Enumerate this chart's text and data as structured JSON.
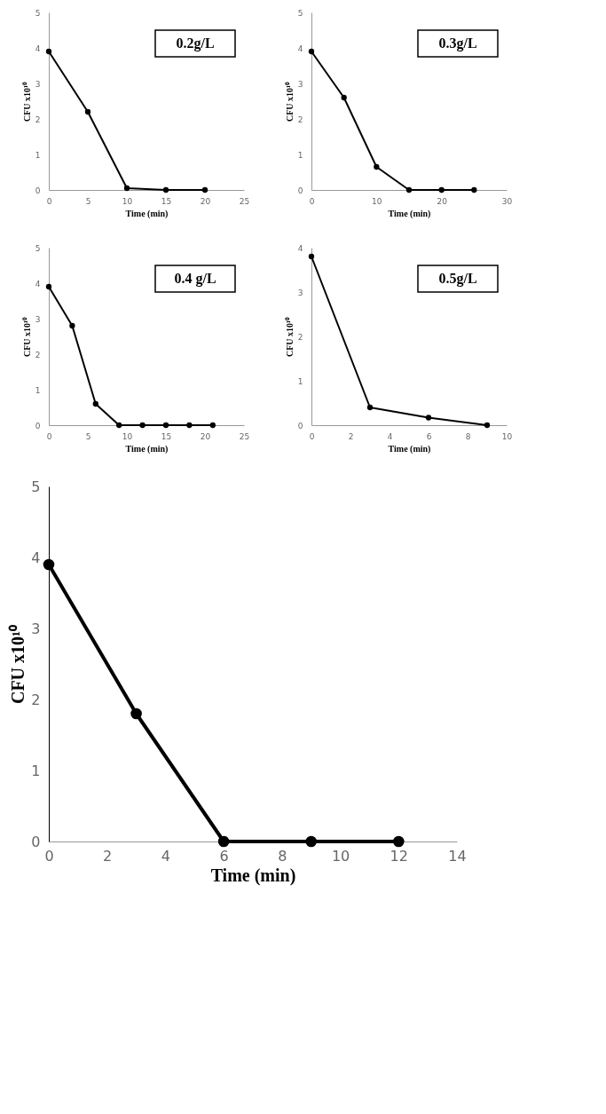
{
  "chart_data": [
    {
      "type": "line",
      "x": [
        0,
        5,
        10,
        15,
        20
      ],
      "values": [
        3.9,
        2.2,
        0.05,
        0,
        0
      ],
      "color": "#000000",
      "marker": "circle",
      "xlabel": "Time (min)",
      "ylabel": "CFU x10¹⁰",
      "annotations": [
        "0.2g/L"
      ],
      "xlim": [
        0,
        25
      ],
      "xticks": [
        0,
        5,
        10,
        15,
        20,
        25
      ],
      "ylim": [
        0,
        5
      ],
      "yticks": [
        0,
        1,
        2,
        3,
        4,
        5
      ]
    },
    {
      "type": "line",
      "x": [
        0,
        5,
        10,
        15,
        20,
        25
      ],
      "values": [
        3.9,
        2.6,
        0.65,
        0,
        0,
        0
      ],
      "color": "#000000",
      "marker": "circle",
      "xlabel": "Time (min)",
      "ylabel": "CFU x10¹⁰",
      "annotations": [
        "0.3g/L"
      ],
      "xlim": [
        0,
        30
      ],
      "xticks": [
        0,
        10,
        20,
        30
      ],
      "ylim": [
        0,
        5
      ],
      "yticks": [
        0,
        1,
        2,
        3,
        4,
        5
      ]
    },
    {
      "type": "line",
      "x": [
        0,
        3,
        6,
        9,
        12,
        15,
        18,
        21
      ],
      "values": [
        3.9,
        2.8,
        0.6,
        0,
        0,
        0,
        0,
        0
      ],
      "color": "#000000",
      "marker": "circle",
      "xlabel": "Time (min)",
      "ylabel": "CFU x10¹⁰",
      "annotations": [
        "0.4 g/L"
      ],
      "xlim": [
        0,
        25
      ],
      "xticks": [
        0,
        5,
        10,
        15,
        20,
        25
      ],
      "ylim": [
        0,
        5
      ],
      "yticks": [
        0,
        1,
        2,
        3,
        4,
        5
      ]
    },
    {
      "type": "line",
      "x": [
        0,
        3,
        6,
        9
      ],
      "values": [
        3.8,
        0.4,
        0.17,
        0
      ],
      "color": "#000000",
      "marker": "circle",
      "xlabel": "Time (min)",
      "ylabel": "CFU x10¹⁰",
      "annotations": [
        "0.5g/L"
      ],
      "xlim": [
        0,
        10
      ],
      "xticks": [
        0,
        2,
        4,
        6,
        8,
        10
      ],
      "ylim": [
        0,
        4
      ],
      "yticks": [
        0,
        1,
        2,
        3,
        4
      ]
    },
    {
      "type": "line",
      "x": [
        0,
        3,
        6,
        9,
        12
      ],
      "values": [
        3.9,
        1.8,
        0,
        0,
        0
      ],
      "color": "#000000",
      "marker": "circle",
      "xlabel": "Time (min)",
      "ylabel": "CFU x10¹⁰",
      "xlim": [
        0,
        14
      ],
      "xticks": [
        0,
        2,
        4,
        6,
        8,
        10,
        12,
        14
      ],
      "ylim": [
        0,
        5
      ],
      "yticks": [
        0,
        1,
        2,
        3,
        4,
        5
      ]
    }
  ]
}
